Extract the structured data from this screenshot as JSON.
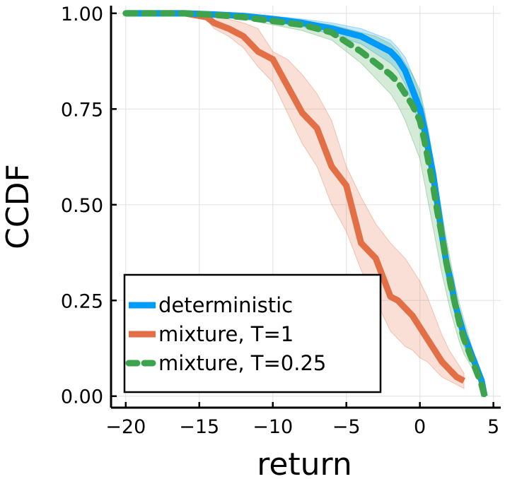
{
  "chart_data": {
    "type": "line",
    "title": "",
    "xlabel": "return",
    "ylabel": "CCDF",
    "xlim": [
      -21,
      5.5
    ],
    "ylim": [
      -0.03,
      1.02
    ],
    "xticks": [
      -20,
      -15,
      -10,
      -5,
      0,
      5
    ],
    "xtick_labels": [
      "−20",
      "−15",
      "−10",
      "−5",
      "0",
      "5"
    ],
    "yticks": [
      0.0,
      0.25,
      0.5,
      0.75,
      1.0
    ],
    "ytick_labels": [
      "0.00",
      "0.25",
      "0.50",
      "0.75",
      "1.00"
    ],
    "grid": true,
    "legend_position": "bottom-left",
    "series": [
      {
        "name": "deterministic",
        "color": "#009af9",
        "style": "solid",
        "x": [
          -20,
          -16,
          -14,
          -12,
          -10,
          -8,
          -6,
          -4,
          -3,
          -2,
          -1.5,
          -1,
          -0.5,
          0,
          0.3,
          0.6,
          0.9,
          1.2,
          1.5,
          1.8,
          2.1,
          2.4,
          2.7,
          3.0,
          3.3,
          3.6,
          3.9,
          4.2,
          4.4
        ],
        "y": [
          1.0,
          1.0,
          0.997,
          0.993,
          0.985,
          0.975,
          0.96,
          0.94,
          0.92,
          0.9,
          0.88,
          0.85,
          0.8,
          0.75,
          0.7,
          0.64,
          0.58,
          0.5,
          0.42,
          0.35,
          0.3,
          0.24,
          0.2,
          0.16,
          0.13,
          0.1,
          0.07,
          0.04,
          0.0
        ],
        "band_upper": [
          1.0,
          1.0,
          1.0,
          0.998,
          0.993,
          0.985,
          0.975,
          0.96,
          0.945,
          0.93,
          0.91,
          0.885,
          0.84,
          0.79,
          0.74,
          0.68,
          0.62,
          0.54,
          0.46,
          0.39,
          0.33,
          0.27,
          0.22,
          0.18,
          0.15,
          0.12,
          0.09,
          0.05,
          0.0
        ],
        "band_lower": [
          1.0,
          1.0,
          0.994,
          0.988,
          0.977,
          0.965,
          0.945,
          0.92,
          0.895,
          0.87,
          0.85,
          0.815,
          0.76,
          0.71,
          0.66,
          0.6,
          0.54,
          0.46,
          0.38,
          0.31,
          0.27,
          0.21,
          0.17,
          0.13,
          0.11,
          0.08,
          0.05,
          0.03,
          0.0
        ]
      },
      {
        "name": "mixture, T=1",
        "color": "#e26f46",
        "style": "solid",
        "x": [
          -20,
          -16,
          -14.5,
          -14,
          -13,
          -12,
          -11,
          -10,
          -9,
          -8,
          -7,
          -6,
          -5,
          -4,
          -3,
          -2,
          -1.5,
          -1,
          -0.5,
          0,
          0.5,
          1,
          1.5,
          2,
          2.5,
          3
        ],
        "y": [
          1.0,
          1.0,
          0.99,
          0.975,
          0.96,
          0.94,
          0.9,
          0.88,
          0.81,
          0.74,
          0.7,
          0.6,
          0.55,
          0.4,
          0.36,
          0.26,
          0.25,
          0.23,
          0.21,
          0.18,
          0.15,
          0.12,
          0.09,
          0.07,
          0.05,
          0.04
        ],
        "band_upper": [
          1.0,
          1.0,
          1.0,
          0.995,
          0.985,
          0.975,
          0.96,
          0.9,
          0.88,
          0.84,
          0.79,
          0.72,
          0.6,
          0.52,
          0.45,
          0.4,
          0.38,
          0.36,
          0.33,
          0.3,
          0.26,
          0.21,
          0.16,
          0.12,
          0.09,
          0.06
        ],
        "band_lower": [
          1.0,
          1.0,
          0.985,
          0.96,
          0.94,
          0.91,
          0.86,
          0.82,
          0.74,
          0.66,
          0.6,
          0.5,
          0.43,
          0.33,
          0.25,
          0.17,
          0.15,
          0.13,
          0.12,
          0.1,
          0.09,
          0.07,
          0.05,
          0.04,
          0.03,
          0.02
        ]
      },
      {
        "name": "mixture, T=0.25",
        "color": "#3da44d",
        "style": "dashed",
        "x": [
          -20,
          -16,
          -14,
          -12,
          -10,
          -8,
          -6,
          -4,
          -3,
          -2,
          -1.5,
          -1,
          -0.5,
          0,
          0.3,
          0.6,
          0.9,
          1.2,
          1.5,
          1.8,
          2.1,
          2.4,
          2.7,
          3.0,
          3.3,
          3.6,
          3.9,
          4.2,
          4.4
        ],
        "y": [
          1.0,
          1.0,
          0.996,
          0.99,
          0.98,
          0.97,
          0.95,
          0.9,
          0.87,
          0.84,
          0.82,
          0.79,
          0.76,
          0.72,
          0.67,
          0.61,
          0.55,
          0.48,
          0.42,
          0.35,
          0.29,
          0.24,
          0.19,
          0.15,
          0.12,
          0.09,
          0.06,
          0.03,
          0.0
        ],
        "band_upper": [
          1.0,
          1.0,
          1.0,
          0.998,
          0.99,
          0.98,
          0.97,
          0.95,
          0.94,
          0.92,
          0.9,
          0.87,
          0.84,
          0.8,
          0.75,
          0.69,
          0.62,
          0.55,
          0.48,
          0.41,
          0.35,
          0.29,
          0.24,
          0.2,
          0.16,
          0.12,
          0.08,
          0.05,
          0.0
        ],
        "band_lower": [
          1.0,
          1.0,
          0.992,
          0.985,
          0.97,
          0.955,
          0.93,
          0.87,
          0.83,
          0.79,
          0.76,
          0.72,
          0.67,
          0.62,
          0.56,
          0.5,
          0.44,
          0.38,
          0.32,
          0.27,
          0.22,
          0.18,
          0.14,
          0.11,
          0.09,
          0.07,
          0.05,
          0.02,
          0.0
        ]
      }
    ]
  }
}
